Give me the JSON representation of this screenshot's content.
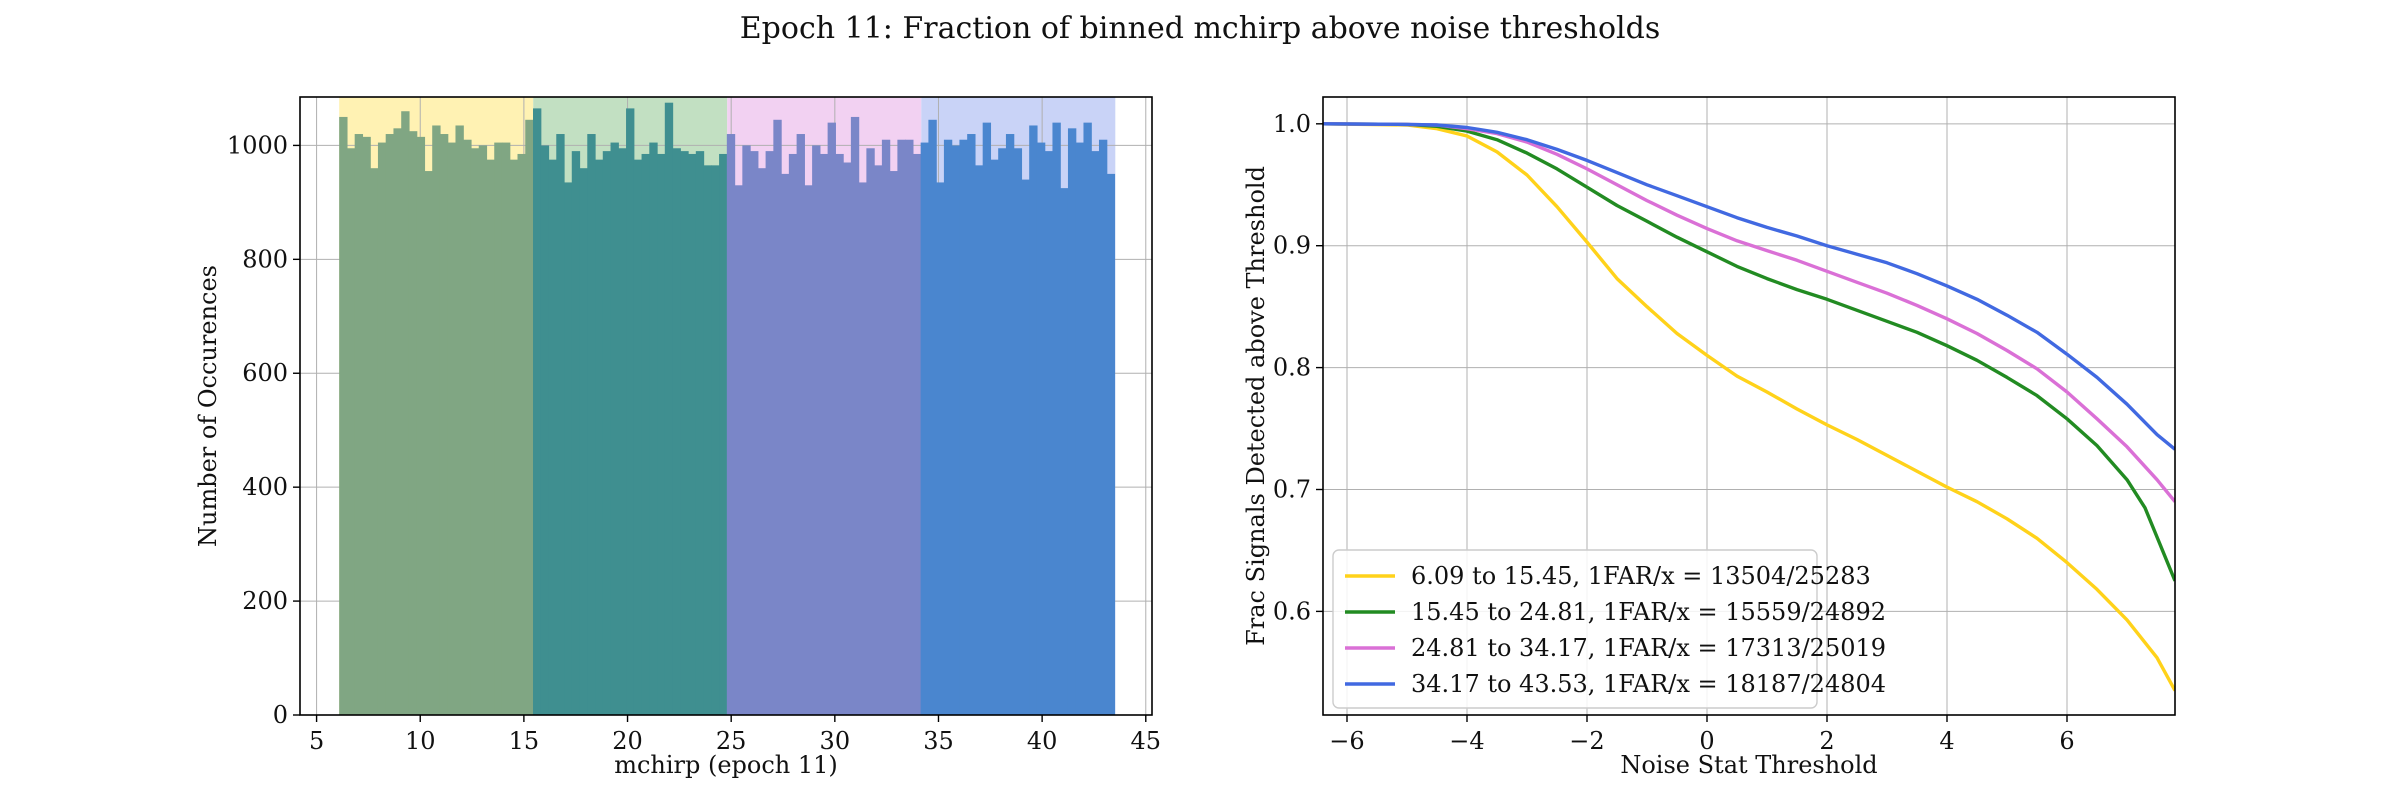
{
  "figure": {
    "suptitle": "Epoch 11: Fraction of binned mchirp above noise thresholds"
  },
  "chart_data": [
    {
      "type": "bar",
      "subtype": "histogram",
      "xlabel": "mchirp (epoch 11)",
      "ylabel": "Number of Occurences",
      "xlim": [
        4.2,
        45.3
      ],
      "ylim": [
        0,
        1085
      ],
      "xticks": [
        5,
        10,
        15,
        20,
        25,
        30,
        35,
        40,
        45
      ],
      "yticks": [
        0,
        200,
        400,
        600,
        800,
        1000
      ],
      "grid": true,
      "bin_start": 6.09,
      "bin_width": 0.374,
      "counts": [
        1050,
        995,
        1020,
        1015,
        960,
        1005,
        1020,
        1030,
        1060,
        1025,
        1015,
        955,
        1035,
        1020,
        1005,
        1035,
        1010,
        995,
        1000,
        975,
        1005,
        1005,
        975,
        985,
        1045,
        1065,
        1000,
        975,
        1020,
        935,
        990,
        960,
        1020,
        975,
        990,
        1005,
        995,
        1065,
        975,
        985,
        1005,
        985,
        1075,
        995,
        990,
        985,
        990,
        965,
        965,
        985,
        1020,
        930,
        1000,
        990,
        960,
        990,
        1045,
        950,
        985,
        1020,
        930,
        1000,
        985,
        1040,
        985,
        970,
        1050,
        935,
        995,
        965,
        1010,
        955,
        1010,
        1010,
        985,
        1005,
        1045,
        935,
        1010,
        1000,
        1010,
        1020,
        965,
        1040,
        975,
        995,
        1020,
        995,
        940,
        1035,
        1005,
        990,
        1040,
        925,
        1030,
        1005,
        1040,
        990,
        1010,
        950
      ],
      "bins": [
        {
          "range": [
            6.09,
            15.45
          ],
          "shade_color": "#fff2b3",
          "bar_color": "#80a683"
        },
        {
          "range": [
            15.45,
            24.81
          ],
          "shade_color": "#c2e0c2",
          "bar_color": "#3f8f90"
        },
        {
          "range": [
            24.81,
            34.17
          ],
          "shade_color": "#f2d1f2",
          "bar_color": "#7a86c8"
        },
        {
          "range": [
            34.17,
            43.53
          ],
          "shade_color": "#c9d3f7",
          "bar_color": "#4a86cf"
        }
      ]
    },
    {
      "type": "line",
      "xlabel": "Noise Stat Threshold",
      "ylabel": "Frac Signals Detected above Threshold",
      "xlim": [
        -6.4,
        7.8
      ],
      "ylim": [
        0.515,
        1.022
      ],
      "xticks": [
        -6,
        -4,
        -2,
        0,
        2,
        4,
        6
      ],
      "xtick_labels": [
        "−6",
        "−4",
        "−2",
        "0",
        "2",
        "4",
        "6"
      ],
      "yticks": [
        0.6,
        0.7,
        0.8,
        0.9,
        1.0
      ],
      "ytick_labels": [
        "0.6",
        "0.7",
        "0.8",
        "0.9",
        "1.0"
      ],
      "grid": true,
      "legend_position": "lower-left",
      "series": [
        {
          "name": "6.09 to 15.45, 1FAR/x = 13504/25283",
          "color": "#ffd21a",
          "x": [
            -6.4,
            -5.0,
            -4.5,
            -4.0,
            -3.5,
            -3.0,
            -2.5,
            -2.0,
            -1.5,
            -1.0,
            -0.5,
            0.0,
            0.5,
            1.0,
            1.5,
            2.0,
            2.5,
            3.0,
            3.5,
            4.0,
            4.5,
            5.0,
            5.5,
            6.0,
            6.5,
            7.0,
            7.5,
            7.8
          ],
          "y": [
            1.0,
            0.999,
            0.996,
            0.99,
            0.977,
            0.958,
            0.932,
            0.903,
            0.873,
            0.85,
            0.828,
            0.81,
            0.793,
            0.78,
            0.766,
            0.753,
            0.741,
            0.728,
            0.715,
            0.702,
            0.69,
            0.676,
            0.66,
            0.64,
            0.618,
            0.593,
            0.562,
            0.535
          ]
        },
        {
          "name": "15.45 to 24.81, 1FAR/x = 15559/24892",
          "color": "#228b22",
          "x": [
            -6.4,
            -5.0,
            -4.5,
            -4.0,
            -3.5,
            -3.0,
            -2.5,
            -2.0,
            -1.5,
            -1.0,
            -0.5,
            0.0,
            0.5,
            1.0,
            1.5,
            2.0,
            2.5,
            3.0,
            3.5,
            4.0,
            4.5,
            5.0,
            5.5,
            6.0,
            6.5,
            7.0,
            7.3,
            7.5,
            7.8
          ],
          "y": [
            1.0,
            0.9995,
            0.998,
            0.994,
            0.987,
            0.976,
            0.963,
            0.948,
            0.933,
            0.92,
            0.907,
            0.895,
            0.883,
            0.873,
            0.864,
            0.856,
            0.847,
            0.838,
            0.829,
            0.818,
            0.806,
            0.792,
            0.777,
            0.758,
            0.736,
            0.708,
            0.685,
            0.661,
            0.625
          ]
        },
        {
          "name": "24.81 to 34.17, 1FAR/x = 17313/25019",
          "color": "#da70d6",
          "x": [
            -6.4,
            -5.0,
            -4.5,
            -4.0,
            -3.5,
            -3.0,
            -2.5,
            -2.0,
            -1.5,
            -1.0,
            -0.5,
            0.0,
            0.5,
            1.0,
            1.5,
            2.0,
            2.5,
            3.0,
            3.5,
            4.0,
            4.5,
            5.0,
            5.5,
            6.0,
            6.5,
            7.0,
            7.5,
            7.8
          ],
          "y": [
            1.0,
            0.9995,
            0.999,
            0.996,
            0.992,
            0.985,
            0.975,
            0.963,
            0.95,
            0.937,
            0.925,
            0.914,
            0.904,
            0.896,
            0.888,
            0.879,
            0.87,
            0.861,
            0.851,
            0.84,
            0.828,
            0.814,
            0.799,
            0.78,
            0.758,
            0.735,
            0.708,
            0.69
          ]
        },
        {
          "name": "34.17 to 43.53, 1FAR/x = 18187/24804",
          "color": "#4169e1",
          "x": [
            -6.4,
            -5.0,
            -4.5,
            -4.0,
            -3.5,
            -3.0,
            -2.5,
            -2.0,
            -1.5,
            -1.0,
            -0.5,
            0.0,
            0.5,
            1.0,
            1.5,
            2.0,
            2.5,
            3.0,
            3.5,
            4.0,
            4.5,
            5.0,
            5.5,
            6.0,
            6.5,
            7.0,
            7.5,
            7.8
          ],
          "y": [
            1.0,
            0.9995,
            0.999,
            0.997,
            0.993,
            0.987,
            0.979,
            0.97,
            0.96,
            0.95,
            0.941,
            0.932,
            0.923,
            0.915,
            0.908,
            0.9,
            0.893,
            0.886,
            0.877,
            0.867,
            0.856,
            0.843,
            0.829,
            0.811,
            0.792,
            0.77,
            0.745,
            0.733
          ]
        }
      ]
    }
  ]
}
